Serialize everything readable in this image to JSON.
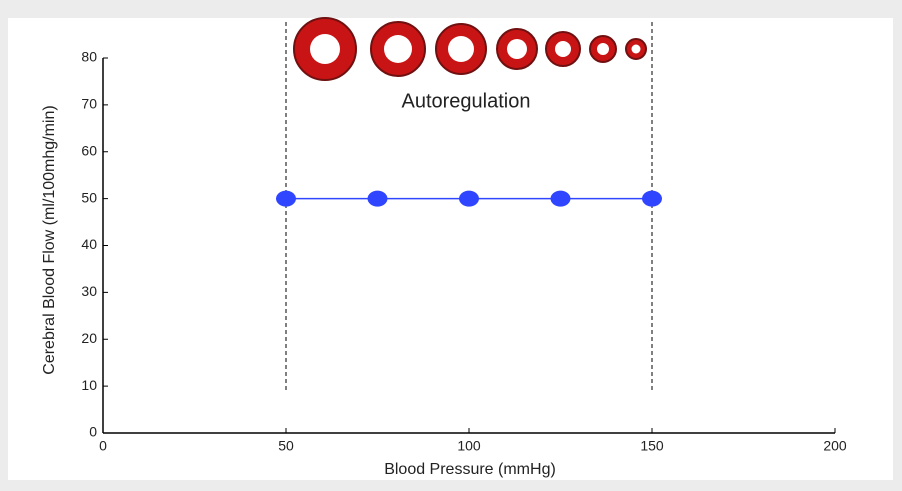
{
  "chart_data": {
    "type": "line",
    "annotation": "Autoregulation",
    "xlabel": "Blood Pressure (mmHg)",
    "ylabel": "Cerebral Blood Flow (ml/100mhg/min)",
    "x": [
      50,
      75,
      100,
      125,
      150
    ],
    "series": [
      {
        "color": "#2f45ff",
        "values": [
          50,
          50,
          50,
          50,
          50
        ]
      }
    ],
    "vlines": [
      50,
      150
    ],
    "xlim": [
      0,
      200
    ],
    "xticks": [
      0,
      50,
      100,
      150,
      200
    ],
    "ylim": [
      0,
      80
    ],
    "yticks": [
      0,
      10,
      20,
      30,
      40,
      50,
      60,
      70,
      80
    ]
  }
}
